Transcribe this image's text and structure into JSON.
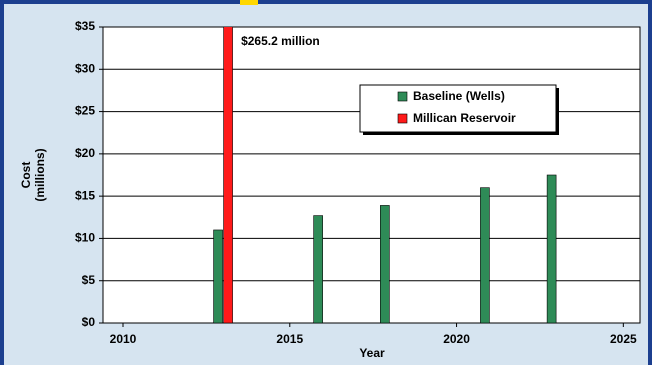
{
  "chart_data": {
    "type": "bar",
    "x_label": "Year",
    "y_label": [
      "Cost",
      "(millions)"
    ],
    "xlim": [
      2009.4,
      2025.5
    ],
    "xticks": [
      2010,
      2015,
      2020,
      2025
    ],
    "ylim": [
      0,
      35
    ],
    "yticks": [
      {
        "value": 0,
        "label": "$0"
      },
      {
        "value": 5,
        "label": "$5"
      },
      {
        "value": 10,
        "label": "$10"
      },
      {
        "value": 15,
        "label": "$15"
      },
      {
        "value": 20,
        "label": "$20"
      },
      {
        "value": 25,
        "label": "$25"
      },
      {
        "value": 30,
        "label": "$30"
      },
      {
        "value": 35,
        "label": "$35"
      }
    ],
    "grid": true,
    "legend": "upper right",
    "series": [
      {
        "name": "Baseline (Wells)",
        "color": "#2e8b57",
        "x": [
          2013,
          2016,
          2018,
          2021,
          2023
        ],
        "values": [
          11,
          12.7,
          13.9,
          16,
          17.5
        ]
      },
      {
        "name": "Millican Reservoir",
        "color": "#ff1a1a",
        "x": [
          2013
        ],
        "values": [
          265.2
        ],
        "value_labels": [
          "$265.2 million"
        ]
      }
    ]
  }
}
